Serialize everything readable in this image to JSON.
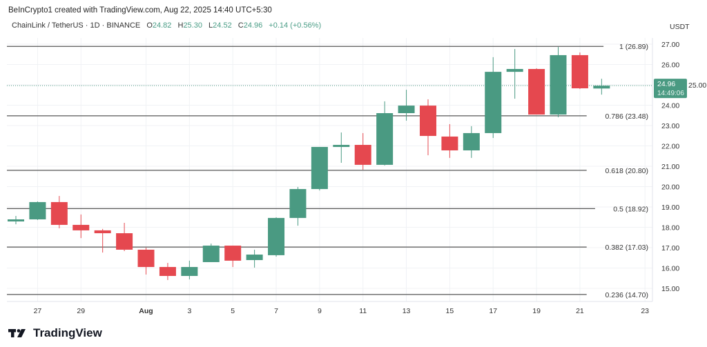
{
  "header": {
    "credit": "BeInCrypto1 created with TradingView.com, Aug 22, 2025 14:40 UTC+5:30",
    "symbol": "ChainLink / TetherUS · 1D · BINANCE",
    "ohlc": {
      "o_label": "O",
      "o": "24.82",
      "h_label": "H",
      "h": "25.30",
      "l_label": "L",
      "l": "24.52",
      "c_label": "C",
      "c": "24.96",
      "change": "+0.14 (+0.56%)"
    }
  },
  "logo": {
    "text": "TradingView",
    "icon": "tradingview-logo-icon"
  },
  "colors": {
    "up": "#4a9a82",
    "down": "#e5484f",
    "fib_line": "#555555",
    "grid": "#f0f2f5",
    "price_tag": "#4a9a82"
  },
  "chart_data": {
    "type": "candlestick",
    "currency_label": "USDT",
    "ylim": [
      14.6,
      27.3
    ],
    "y_ticks": [
      "15.00",
      "16.00",
      "17.00",
      "18.00",
      "19.00",
      "20.00",
      "21.00",
      "22.00",
      "23.00",
      "24.00",
      "25.00",
      "26.00",
      "27.00"
    ],
    "x_ticks": [
      {
        "date": "Jul 27",
        "label": "27"
      },
      {
        "date": "Jul 29",
        "label": "29"
      },
      {
        "date": "Aug 1",
        "label": "Aug"
      },
      {
        "date": "Aug 3",
        "label": "3"
      },
      {
        "date": "Aug 5",
        "label": "5"
      },
      {
        "date": "Aug 7",
        "label": "7"
      },
      {
        "date": "Aug 9",
        "label": "9"
      },
      {
        "date": "Aug 11",
        "label": "11"
      },
      {
        "date": "Aug 13",
        "label": "13"
      },
      {
        "date": "Aug 15",
        "label": "15"
      },
      {
        "date": "Aug 17",
        "label": "17"
      },
      {
        "date": "Aug 19",
        "label": "19"
      },
      {
        "date": "Aug 21",
        "label": "21"
      },
      {
        "date": "Aug 23",
        "label": "23"
      }
    ],
    "candles": [
      {
        "date": "Jul 26",
        "o": 18.29,
        "h": 18.56,
        "l": 18.15,
        "c": 18.39
      },
      {
        "date": "Jul 27",
        "o": 18.39,
        "h": 19.27,
        "l": 18.36,
        "c": 19.24
      },
      {
        "date": "Jul 28",
        "o": 19.24,
        "h": 19.54,
        "l": 17.95,
        "c": 18.12
      },
      {
        "date": "Jul 29",
        "o": 18.12,
        "h": 18.63,
        "l": 17.47,
        "c": 17.85
      },
      {
        "date": "Jul 30",
        "o": 17.85,
        "h": 17.92,
        "l": 16.76,
        "c": 17.71
      },
      {
        "date": "Jul 31",
        "o": 17.71,
        "h": 18.22,
        "l": 16.83,
        "c": 16.9
      },
      {
        "date": "Aug 1",
        "o": 16.9,
        "h": 17.0,
        "l": 15.68,
        "c": 16.05
      },
      {
        "date": "Aug 2",
        "o": 16.05,
        "h": 16.25,
        "l": 15.41,
        "c": 15.61
      },
      {
        "date": "Aug 3",
        "o": 15.61,
        "h": 16.36,
        "l": 15.44,
        "c": 16.05
      },
      {
        "date": "Aug 4",
        "o": 16.29,
        "h": 17.2,
        "l": 16.29,
        "c": 17.1
      },
      {
        "date": "Aug 5",
        "o": 17.1,
        "h": 17.1,
        "l": 16.05,
        "c": 16.36
      },
      {
        "date": "Aug 6",
        "o": 16.39,
        "h": 16.9,
        "l": 16.02,
        "c": 16.66
      },
      {
        "date": "Aug 7",
        "o": 16.63,
        "h": 18.49,
        "l": 16.56,
        "c": 18.46
      },
      {
        "date": "Aug 8",
        "o": 18.46,
        "h": 19.98,
        "l": 18.08,
        "c": 19.88
      },
      {
        "date": "Aug 9",
        "o": 19.88,
        "h": 21.95,
        "l": 19.81,
        "c": 21.95
      },
      {
        "date": "Aug 10",
        "o": 21.95,
        "h": 22.66,
        "l": 21.17,
        "c": 22.05
      },
      {
        "date": "Aug 11",
        "o": 22.05,
        "h": 22.63,
        "l": 20.83,
        "c": 21.07
      },
      {
        "date": "Aug 12",
        "o": 21.07,
        "h": 24.19,
        "l": 21.04,
        "c": 23.61
      },
      {
        "date": "Aug 13",
        "o": 23.61,
        "h": 24.76,
        "l": 23.24,
        "c": 23.98
      },
      {
        "date": "Aug 14",
        "o": 23.98,
        "h": 24.29,
        "l": 21.54,
        "c": 22.49
      },
      {
        "date": "Aug 15",
        "o": 22.46,
        "h": 23.07,
        "l": 21.41,
        "c": 21.78
      },
      {
        "date": "Aug 16",
        "o": 21.78,
        "h": 22.97,
        "l": 21.41,
        "c": 22.63
      },
      {
        "date": "Aug 17",
        "o": 22.63,
        "h": 26.36,
        "l": 22.39,
        "c": 25.64
      },
      {
        "date": "Aug 18",
        "o": 25.64,
        "h": 26.76,
        "l": 24.32,
        "c": 25.78
      },
      {
        "date": "Aug 19",
        "o": 25.78,
        "h": 25.81,
        "l": 23.54,
        "c": 23.54
      },
      {
        "date": "Aug 20",
        "o": 23.54,
        "h": 26.86,
        "l": 23.41,
        "c": 26.46
      },
      {
        "date": "Aug 21",
        "o": 26.46,
        "h": 26.59,
        "l": 24.8,
        "c": 24.83
      },
      {
        "date": "Aug 22",
        "o": 24.82,
        "h": 25.3,
        "l": 24.52,
        "c": 24.96
      }
    ],
    "fib_levels": [
      {
        "ratio": "1",
        "value": 26.89,
        "label": "1 (26.89)"
      },
      {
        "ratio": "0.786",
        "value": 23.48,
        "label": "0.786 (23.48)"
      },
      {
        "ratio": "0.618",
        "value": 20.8,
        "label": "0.618 (20.80)"
      },
      {
        "ratio": "0.5",
        "value": 18.92,
        "label": "0.5 (18.92)"
      },
      {
        "ratio": "0.382",
        "value": 17.03,
        "label": "0.382 (17.03)"
      },
      {
        "ratio": "0.236",
        "value": 14.7,
        "label": "0.236 (14.70)"
      }
    ],
    "last_price": {
      "value": 24.96,
      "label": "24.96",
      "countdown": "14:49:06"
    }
  }
}
